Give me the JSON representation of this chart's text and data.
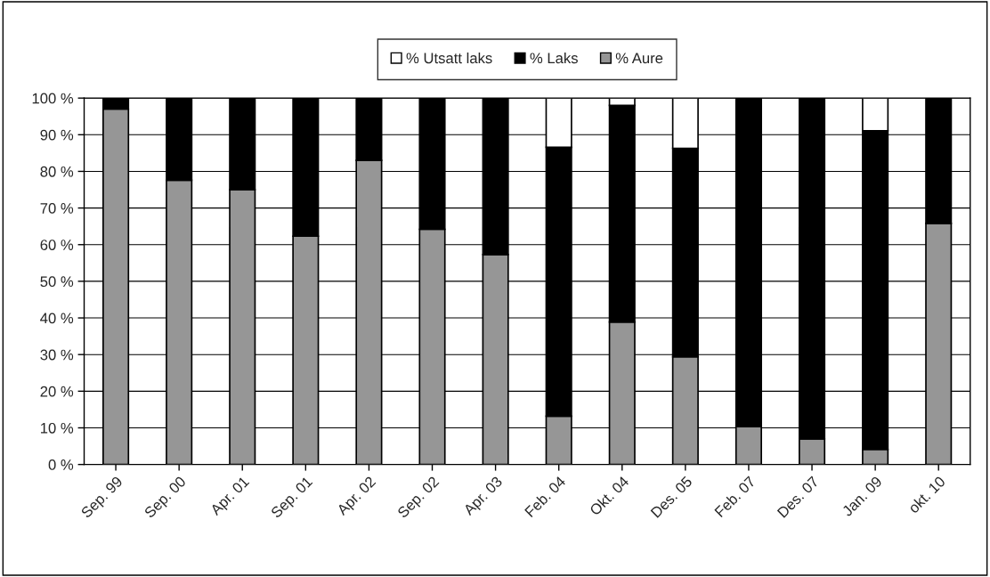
{
  "chart_data": {
    "type": "bar",
    "stacked": true,
    "categories": [
      "Sep. 99",
      "Sep. 00",
      "Apr. 01",
      "Sep. 01",
      "Apr. 02",
      "Sep. 02",
      "Apr. 03",
      "Feb. 04",
      "Okt. 04",
      "Des. 05",
      "Feb. 07",
      "Des. 07",
      "Jan. 09",
      "okt. 10"
    ],
    "series": [
      {
        "name": "% Aure",
        "color": "#969696",
        "values": [
          97.0,
          77.6,
          75.0,
          62.3,
          83.0,
          64.2,
          57.3,
          13.2,
          38.9,
          29.4,
          10.3,
          7.0,
          4.1,
          65.8
        ]
      },
      {
        "name": "% Laks",
        "color": "#000000",
        "values": [
          3.0,
          22.4,
          25.0,
          37.7,
          17.0,
          35.8,
          42.7,
          73.4,
          59.1,
          56.9,
          89.7,
          93.0,
          87.0,
          34.2
        ]
      },
      {
        "name": "% Utsatt laks",
        "color": "#ffffff",
        "values": [
          null,
          null,
          null,
          null,
          null,
          null,
          null,
          13.4,
          2.0,
          13.7,
          null,
          null,
          8.9,
          null
        ]
      }
    ],
    "ylim": [
      0,
      100
    ],
    "yticks": [
      {
        "value": 0,
        "label": "0 %"
      },
      {
        "value": 10,
        "label": "10 %"
      },
      {
        "value": 20,
        "label": "20 %"
      },
      {
        "value": 30,
        "label": "30 %"
      },
      {
        "value": 40,
        "label": "40 %"
      },
      {
        "value": 50,
        "label": "50 %"
      },
      {
        "value": 60,
        "label": "60 %"
      },
      {
        "value": 70,
        "label": "70 %"
      },
      {
        "value": 80,
        "label": "80 %"
      },
      {
        "value": 90,
        "label": "90 %"
      },
      {
        "value": 100,
        "label": "100 %"
      }
    ],
    "grid": "y",
    "legend": "top"
  }
}
